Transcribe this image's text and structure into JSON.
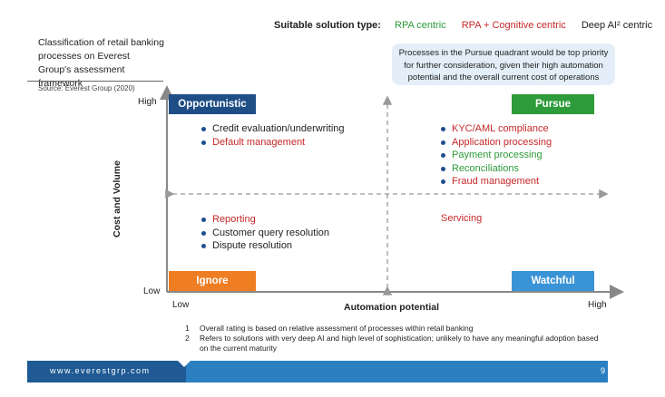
{
  "legend": {
    "label": "Suitable solution type:",
    "rpa": "RPA centric",
    "cognitive": "RPA + Cognitive centric",
    "deep_ai": "Deep AI² centric"
  },
  "title": "Classification of retail banking processes on Everest Group's assessment framework",
  "source": "Source: Everest Group (2020)",
  "note": "Processes in the Pursue quadrant would be top priority for further consideration, given their high automation potential and the overall current cost of operations",
  "axes": {
    "y_label": "Cost and Volume",
    "y_high": "High",
    "y_low": "Low",
    "x_label": "Automation potential",
    "x_low": "Low",
    "x_high": "High"
  },
  "quadrants": {
    "opportunistic": {
      "label": "Opportunistic",
      "color": "#1f4e87",
      "items": [
        {
          "text": "Credit evaluation/underwriting",
          "type": "deep_ai"
        },
        {
          "text": "Default management",
          "type": "cognitive"
        }
      ]
    },
    "pursue": {
      "label": "Pursue",
      "color": "#2e9b3a",
      "items": [
        {
          "text": "KYC/AML compliance",
          "type": "cognitive"
        },
        {
          "text": "Application processing",
          "type": "cognitive"
        },
        {
          "text": "Payment processing",
          "type": "rpa"
        },
        {
          "text": "Reconciliations",
          "type": "rpa"
        },
        {
          "text": "Fraud management",
          "type": "cognitive"
        }
      ]
    },
    "ignore": {
      "label": "Ignore",
      "color": "#ef7d22",
      "items": [
        {
          "text": "Reporting",
          "type": "cognitive"
        },
        {
          "text": "Customer query resolution",
          "type": "deep_ai"
        },
        {
          "text": "Dispute resolution",
          "type": "deep_ai"
        }
      ]
    },
    "watchful": {
      "label": "Watchful",
      "color": "#3a93d6",
      "items": [
        {
          "text": "Servicing",
          "type": "cognitive"
        }
      ]
    }
  },
  "footnotes": [
    {
      "num": "1",
      "text": "Overall rating is based on relative assessment of processes within retail banking"
    },
    {
      "num": "2",
      "text": "Refers to solutions with very deep AI and high level of sophistication; unlikely to have any meaningful adoption based on the current maturity"
    }
  ],
  "footer": {
    "url": "www.everestgrp.com",
    "page": "9"
  }
}
